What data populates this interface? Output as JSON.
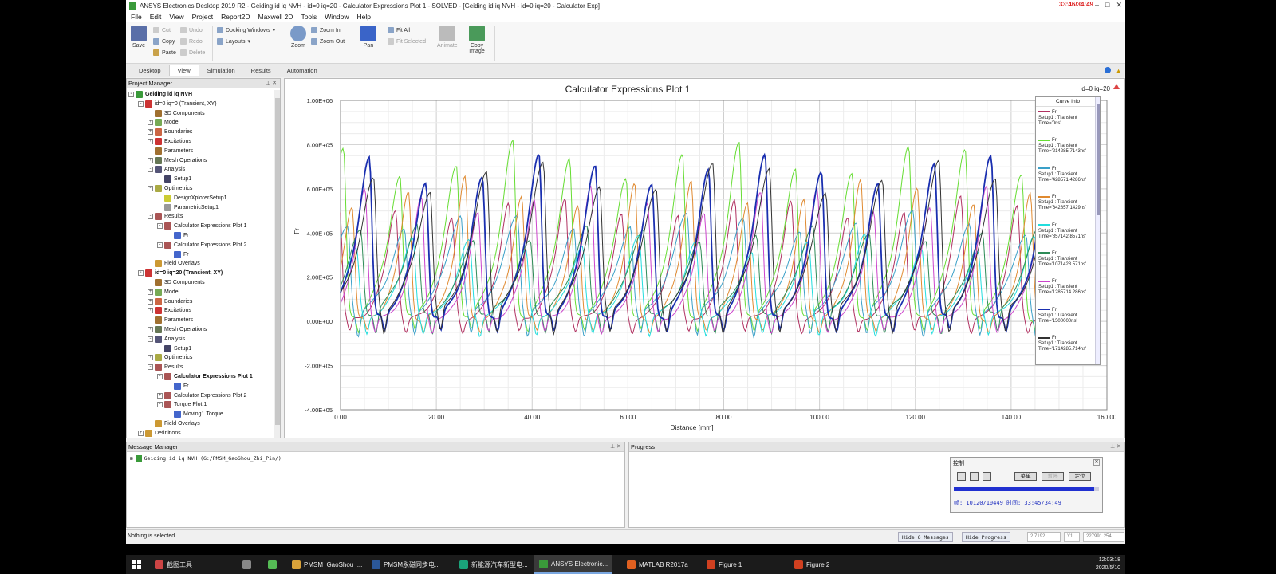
{
  "window": {
    "title": "ANSYS Electronics Desktop 2019 R2 - Geiding id iq NVH - id=0 iq=20 - Calculator Expressions Plot 1 - SOLVED - [Geiding id iq NVH - id=0 iq=20 - Calculator Exp]",
    "clock_overlay": "33:46/34:49"
  },
  "menu": [
    "File",
    "Edit",
    "View",
    "Project",
    "Report2D",
    "Maxwell 2D",
    "Tools",
    "Window",
    "Help"
  ],
  "ribbon": {
    "save": "Save",
    "cut": "Cut",
    "copy": "Copy",
    "paste": "Paste",
    "undo": "Undo",
    "redo": "Redo",
    "delete": "Delete",
    "docking": "Docking Windows",
    "layouts": "Layouts",
    "zoom": "Zoom",
    "zoom_in": "Zoom In",
    "zoom_out": "Zoom Out",
    "pan": "Pan",
    "fit_all": "Fit All",
    "fit_selected": "Fit Selected",
    "animate": "Animate",
    "copy_image_1": "Copy",
    "copy_image_2": "Image"
  },
  "tabs": [
    "Desktop",
    "View",
    "Simulation",
    "Results",
    "Automation"
  ],
  "project_manager": {
    "title": "Project Manager",
    "rows": [
      {
        "label": "Geiding id iq NVH",
        "indent": 0,
        "exp": "-",
        "color": "#3a9a3a",
        "bold": true
      },
      {
        "label": "id=0 iq=0 (Transient, XY)",
        "indent": 1,
        "exp": "-",
        "color": "#c33"
      },
      {
        "label": "3D Components",
        "indent": 2,
        "exp": "",
        "color": "#a07030"
      },
      {
        "label": "Model",
        "indent": 2,
        "exp": "+",
        "color": "#7a5"
      },
      {
        "label": "Boundaries",
        "indent": 2,
        "exp": "+",
        "color": "#c64"
      },
      {
        "label": "Excitations",
        "indent": 2,
        "exp": "+",
        "color": "#c33"
      },
      {
        "label": "Parameters",
        "indent": 2,
        "exp": "",
        "color": "#a07030"
      },
      {
        "label": "Mesh Operations",
        "indent": 2,
        "exp": "+",
        "color": "#675"
      },
      {
        "label": "Analysis",
        "indent": 2,
        "exp": "-",
        "color": "#557"
      },
      {
        "label": "Setup1",
        "indent": 3,
        "exp": "",
        "color": "#446"
      },
      {
        "label": "Optimetrics",
        "indent": 2,
        "exp": "-",
        "color": "#aa4"
      },
      {
        "label": "DesignXplorerSetup1",
        "indent": 3,
        "exp": "",
        "color": "#cc3"
      },
      {
        "label": "ParametricSetup1",
        "indent": 3,
        "exp": "",
        "color": "#999"
      },
      {
        "label": "Results",
        "indent": 2,
        "exp": "-",
        "color": "#a55"
      },
      {
        "label": "Calculator Expressions Plot 1",
        "indent": 3,
        "exp": "-",
        "color": "#a55"
      },
      {
        "label": "Fr",
        "indent": 4,
        "exp": "",
        "color": "#46c"
      },
      {
        "label": "Calculator Expressions Plot 2",
        "indent": 3,
        "exp": "-",
        "color": "#a55"
      },
      {
        "label": "Fr",
        "indent": 4,
        "exp": "",
        "color": "#46c"
      },
      {
        "label": "Field Overlays",
        "indent": 2,
        "exp": "",
        "color": "#c93"
      },
      {
        "label": "id=0 iq=20 (Transient, XY)",
        "indent": 1,
        "exp": "-",
        "color": "#c33",
        "bold": true
      },
      {
        "label": "3D Components",
        "indent": 2,
        "exp": "",
        "color": "#a07030"
      },
      {
        "label": "Model",
        "indent": 2,
        "exp": "+",
        "color": "#7a5"
      },
      {
        "label": "Boundaries",
        "indent": 2,
        "exp": "+",
        "color": "#c64"
      },
      {
        "label": "Excitations",
        "indent": 2,
        "exp": "+",
        "color": "#c33"
      },
      {
        "label": "Parameters",
        "indent": 2,
        "exp": "",
        "color": "#a07030"
      },
      {
        "label": "Mesh Operations",
        "indent": 2,
        "exp": "+",
        "color": "#675"
      },
      {
        "label": "Analysis",
        "indent": 2,
        "exp": "-",
        "color": "#557"
      },
      {
        "label": "Setup1",
        "indent": 3,
        "exp": "",
        "color": "#446"
      },
      {
        "label": "Optimetrics",
        "indent": 2,
        "exp": "+",
        "color": "#aa4"
      },
      {
        "label": "Results",
        "indent": 2,
        "exp": "-",
        "color": "#a55"
      },
      {
        "label": "Calculator Expressions Plot 1",
        "indent": 3,
        "exp": "-",
        "color": "#a55",
        "bold": true
      },
      {
        "label": "Fr",
        "indent": 4,
        "exp": "",
        "color": "#46c"
      },
      {
        "label": "Calculator Expressions Plot 2",
        "indent": 3,
        "exp": "+",
        "color": "#a55"
      },
      {
        "label": "Torque Plot 1",
        "indent": 3,
        "exp": "-",
        "color": "#a55"
      },
      {
        "label": "Moving1.Torque",
        "indent": 4,
        "exp": "",
        "color": "#46c"
      },
      {
        "label": "Field Overlays",
        "indent": 2,
        "exp": "",
        "color": "#c93"
      },
      {
        "label": "Definitions",
        "indent": 1,
        "exp": "+",
        "color": "#c93"
      }
    ]
  },
  "chart_data": {
    "type": "line",
    "title": "Calculator Expressions Plot 1",
    "subtitle": "id=0 iq=20",
    "xlabel": "Distance [mm]",
    "ylabel": "Fr",
    "xlim": [
      0,
      160
    ],
    "ylim": [
      -400000,
      1000000
    ],
    "xticks": [
      "0.00",
      "20.00",
      "40.00",
      "60.00",
      "80.00",
      "100.00",
      "120.00",
      "140.00",
      "160.00"
    ],
    "yticks": [
      "1.00E+06",
      "8.00E+05",
      "6.00E+05",
      "4.00E+05",
      "2.00E+05",
      "0.00E+00",
      "-2.00E+05",
      "-4.00E+05"
    ],
    "grid": true,
    "legend_title": "Curve Info",
    "peak_x": [
      3.3,
      15.1,
      26.9,
      38.7,
      50.5,
      62.3,
      74.1,
      85.9,
      97.7,
      109.5,
      121.3,
      133.1,
      144.9
    ],
    "series": [
      {
        "name": "Fr",
        "setup": "Setup1 : Transient",
        "time": "Time='0ns'",
        "color": "#b03060",
        "peak": 560000
      },
      {
        "name": "Fr",
        "setup": "Setup1 : Transient",
        "time": "Time='214285.7143ns'",
        "color": "#66dd33",
        "peak": 800000
      },
      {
        "name": "Fr",
        "setup": "Setup1 : Transient",
        "time": "Time='428571.4286ns'",
        "color": "#3aa0c8",
        "peak": 480000
      },
      {
        "name": "Fr",
        "setup": "Setup1 : Transient",
        "time": "Time='642857.1429ns'",
        "color": "#e08a30",
        "peak": 640000
      },
      {
        "name": "Fr",
        "setup": "Setup1 : Transient",
        "time": "Time='857142.8571ns'",
        "color": "#22dddd",
        "peak": 380000
      },
      {
        "name": "Fr",
        "setup": "Setup1 : Transient",
        "time": "Time='1071428.571ns'",
        "color": "#2e8b57",
        "peak": 420000
      },
      {
        "name": "Fr",
        "setup": "Setup1 : Transient",
        "time": "Time='1285714.286ns'",
        "color": "#cc44cc",
        "peak": 600000
      },
      {
        "name": "Fr",
        "setup": "Setup1 : Transient",
        "time": "Time='1500000ns'",
        "color": "#1a2fb0",
        "peak": 750000
      },
      {
        "name": "Fr",
        "setup": "Setup1 : Transient",
        "time": "Time='1714285.714ns'",
        "color": "#333333",
        "peak": 700000
      }
    ]
  },
  "message_manager": {
    "title": "Message Manager",
    "row": "Geiding id iq NVH (G:/PMSM_GaoShou_Zhi_Pin/)"
  },
  "progress": {
    "title": "Progress",
    "control_title": "控制",
    "btn_menu": "菜单",
    "btn_pause": "暂停",
    "btn_locate": "定位",
    "fraction": 0.968,
    "status": "帧: 10120/10449 时间: 33:45/34:49"
  },
  "statusbar": {
    "text": "Nothing is selected",
    "hide_messages": "Hide 6 Messages",
    "hide_progress": "Hide Progress",
    "coord_x": "2.7192",
    "coord_y_label": "Y1",
    "coord_y": "227991.254"
  },
  "taskbar": {
    "items": [
      {
        "label": "截图工具",
        "color": "#c44"
      },
      {
        "label": "",
        "color": "#888"
      },
      {
        "label": "",
        "color": "#5b5"
      },
      {
        "label": "PMSM_GaoShou_...",
        "color": "#d9a23a"
      },
      {
        "label": "PMSM永磁同步电...",
        "color": "#2b5797"
      },
      {
        "label": "新能源汽车新型电...",
        "color": "#1aa37a"
      },
      {
        "label": "ANSYS Electronic...",
        "color": "#3a9a3a"
      },
      {
        "label": "MATLAB R2017a",
        "color": "#e06020"
      },
      {
        "label": "Figure 1",
        "color": "#d04020"
      },
      {
        "label": "Figure 2",
        "color": "#d04020"
      }
    ],
    "time": "12:03:18",
    "date": "2020/5/10"
  }
}
